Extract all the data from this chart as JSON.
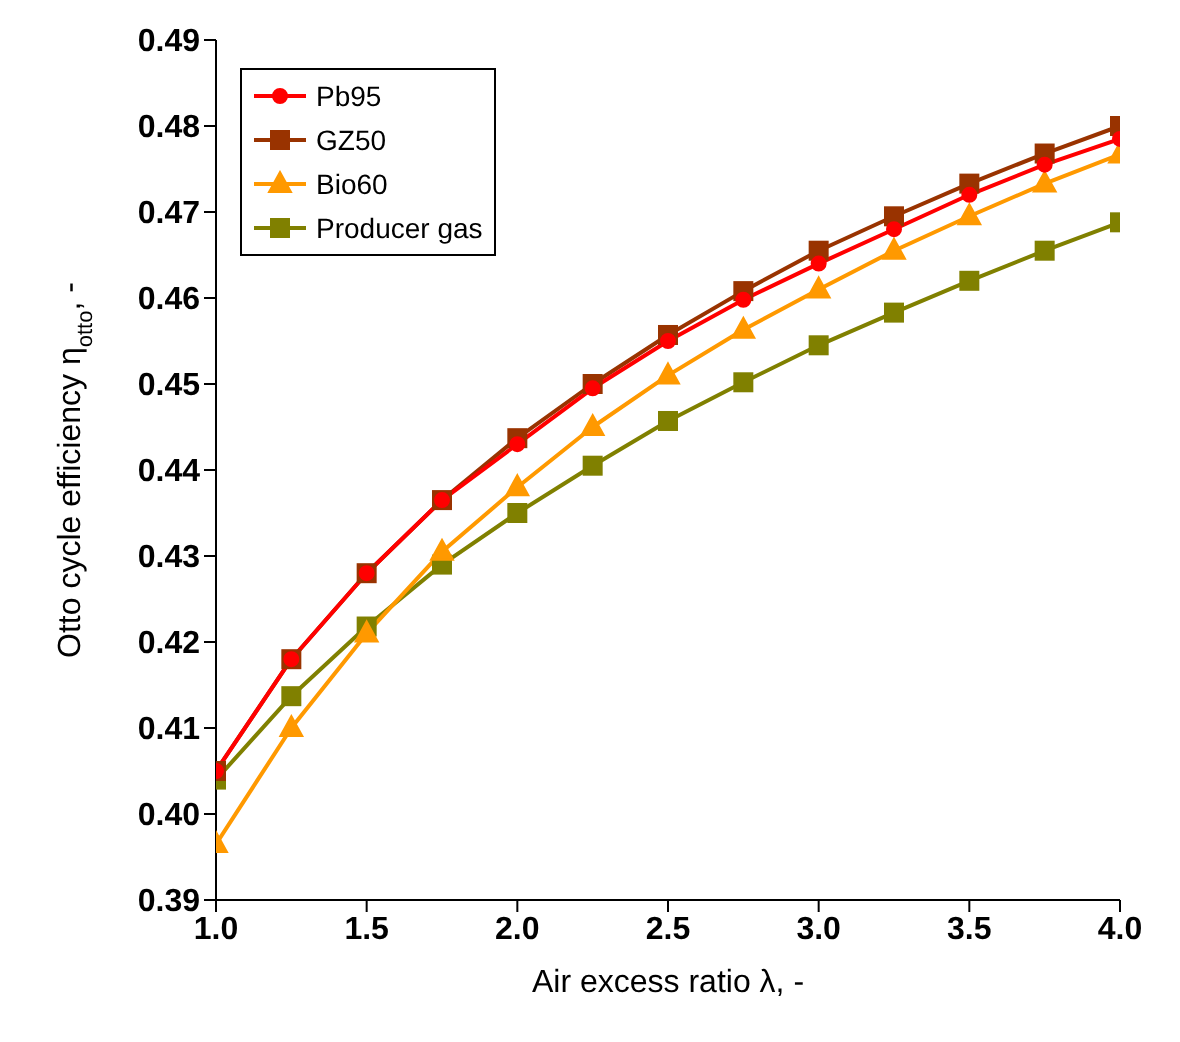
{
  "chart_data": {
    "type": "line",
    "xlabel": "Air excess ratio λ, -",
    "ylabel": "Otto cycle efficiency η$_{otto}$, -",
    "x": [
      1.0,
      1.25,
      1.5,
      1.75,
      2.0,
      2.25,
      2.5,
      2.75,
      3.0,
      3.25,
      3.5,
      3.75,
      4.0
    ],
    "series": [
      {
        "name": "Pb95",
        "color": "#ff0000",
        "marker": "circle",
        "values": [
          0.405,
          0.418,
          0.428,
          0.4365,
          0.443,
          0.4495,
          0.455,
          0.4598,
          0.464,
          0.468,
          0.472,
          0.4755,
          0.4785
        ]
      },
      {
        "name": "GZ50",
        "color": "#993300",
        "marker": "square",
        "values": [
          0.405,
          0.418,
          0.428,
          0.4365,
          0.4437,
          0.45,
          0.4557,
          0.4608,
          0.4655,
          0.4695,
          0.4733,
          0.4768,
          0.48
        ]
      },
      {
        "name": "Bio60",
        "color": "#ff9900",
        "marker": "triangle",
        "values": [
          0.3965,
          0.41,
          0.421,
          0.4305,
          0.438,
          0.445,
          0.451,
          0.4563,
          0.461,
          0.4655,
          0.4695,
          0.4733,
          0.4767
        ]
      },
      {
        "name": "Producer gas",
        "color": "#808000",
        "marker": "square",
        "values": [
          0.404,
          0.4137,
          0.4218,
          0.429,
          0.435,
          0.4405,
          0.4457,
          0.4502,
          0.4545,
          0.4583,
          0.462,
          0.4655,
          0.4688
        ]
      }
    ],
    "xlim": [
      1.0,
      4.0
    ],
    "xticks": [
      {
        "value": 1.0,
        "label": "1.0"
      },
      {
        "value": 1.5,
        "label": "1.5"
      },
      {
        "value": 2.0,
        "label": "2.0"
      },
      {
        "value": 2.5,
        "label": "2.5"
      },
      {
        "value": 3.0,
        "label": "3.0"
      },
      {
        "value": 3.5,
        "label": "3.5"
      },
      {
        "value": 4.0,
        "label": "4.0"
      }
    ],
    "ylim": [
      0.39,
      0.49
    ],
    "yticks": [
      0.39,
      {
        "value": 0.4,
        "label": "0.40"
      },
      0.41,
      0.42,
      0.43,
      0.44,
      0.45,
      0.46,
      0.47,
      0.48,
      0.49
    ],
    "grid": false,
    "legend": "top left",
    "line_style": "solid"
  }
}
